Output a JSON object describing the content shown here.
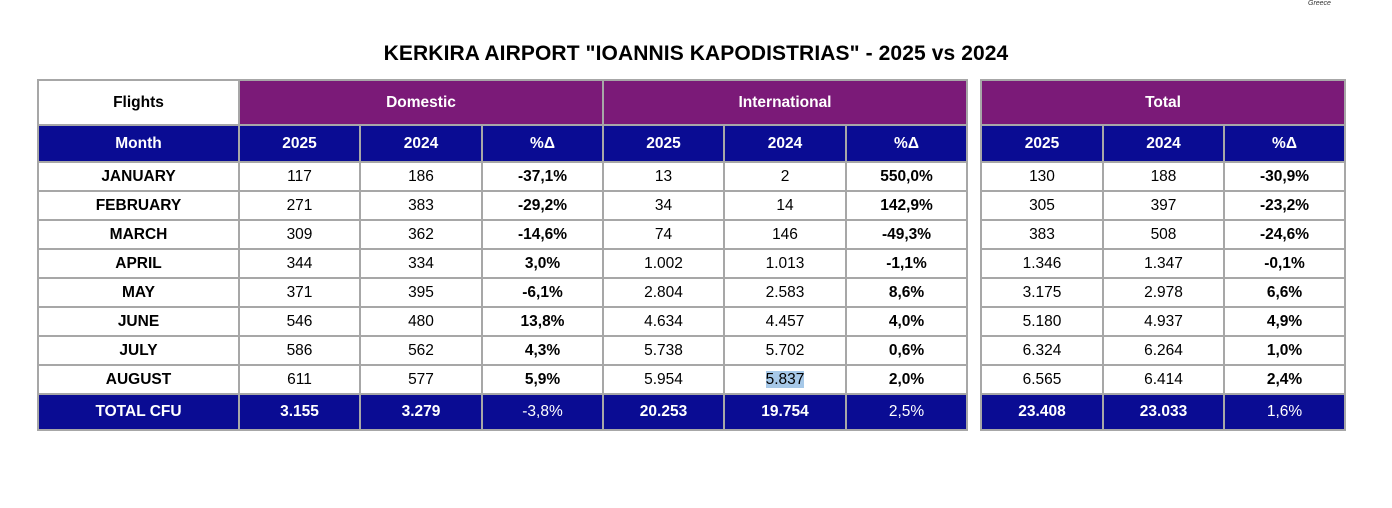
{
  "corner_note": "Greece",
  "title": "KERKIRA AIRPORT \"IOANNIS KAPODISTRIAS\" - 2025 vs 2024",
  "flights_label": "Flights",
  "groups": {
    "domestic": "Domestic",
    "international": "International",
    "total": "Total"
  },
  "headers": {
    "month": "Month",
    "y2025": "2025",
    "y2024": "2024",
    "pct": "%Δ"
  },
  "rows": [
    {
      "month": "JANUARY",
      "dom": [
        "117",
        "186",
        "-37,1%"
      ],
      "int": [
        "13",
        "2",
        "550,0%"
      ],
      "tot": [
        "130",
        "188",
        "-30,9%"
      ]
    },
    {
      "month": "FEBRUARY",
      "dom": [
        "271",
        "383",
        "-29,2%"
      ],
      "int": [
        "34",
        "14",
        "142,9%"
      ],
      "tot": [
        "305",
        "397",
        "-23,2%"
      ]
    },
    {
      "month": "MARCH",
      "dom": [
        "309",
        "362",
        "-14,6%"
      ],
      "int": [
        "74",
        "146",
        "-49,3%"
      ],
      "tot": [
        "383",
        "508",
        "-24,6%"
      ]
    },
    {
      "month": "APRIL",
      "dom": [
        "344",
        "334",
        "3,0%"
      ],
      "int": [
        "1.002",
        "1.013",
        "-1,1%"
      ],
      "tot": [
        "1.346",
        "1.347",
        "-0,1%"
      ]
    },
    {
      "month": "MAY",
      "dom": [
        "371",
        "395",
        "-6,1%"
      ],
      "int": [
        "2.804",
        "2.583",
        "8,6%"
      ],
      "tot": [
        "3.175",
        "2.978",
        "6,6%"
      ]
    },
    {
      "month": "JUNE",
      "dom": [
        "546",
        "480",
        "13,8%"
      ],
      "int": [
        "4.634",
        "4.457",
        "4,0%"
      ],
      "tot": [
        "5.180",
        "4.937",
        "4,9%"
      ]
    },
    {
      "month": "JULY",
      "dom": [
        "586",
        "562",
        "4,3%"
      ],
      "int": [
        "5.738",
        "5.702",
        "0,6%"
      ],
      "tot": [
        "6.324",
        "6.264",
        "1,0%"
      ]
    },
    {
      "month": "AUGUST",
      "dom": [
        "611",
        "577",
        "5,9%"
      ],
      "int": [
        "5.954",
        "5.837",
        "2,0%"
      ],
      "tot": [
        "6.565",
        "6.414",
        "2,4%"
      ]
    }
  ],
  "total_row": {
    "label": "TOTAL CFU",
    "dom": [
      "3.155",
      "3.279",
      "-3,8%"
    ],
    "int": [
      "20.253",
      "19.754",
      "2,5%"
    ],
    "tot": [
      "23.408",
      "23.033",
      "1,6%"
    ]
  }
}
